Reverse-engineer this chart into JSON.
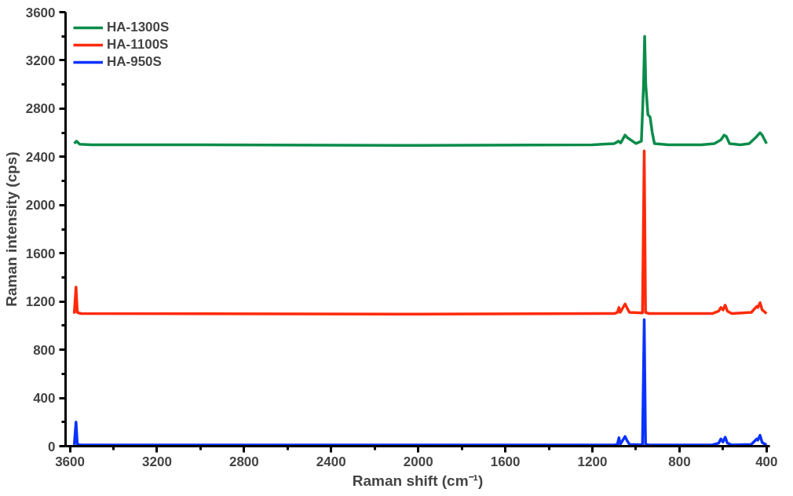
{
  "chart_data": {
    "type": "line",
    "xlabel": "Raman shift (cm⁻¹)",
    "ylabel": "Raman intensity (cps)",
    "xlim": [
      3620,
      385
    ],
    "ylim": [
      0,
      3600
    ],
    "xticks": [
      3600,
      3200,
      2800,
      2400,
      2000,
      1600,
      1200,
      800,
      400
    ],
    "yticks": [
      0,
      400,
      800,
      1200,
      1600,
      2000,
      2400,
      2800,
      3200,
      3600
    ],
    "grid": false,
    "legend": "top left",
    "line_style": "solid",
    "marker": "none",
    "series": [
      {
        "name": "HA-1300S",
        "color": "#0a8c4a",
        "x": [
          3580,
          3570,
          3555,
          3500,
          3000,
          2000,
          1200,
          1100,
          1080,
          1070,
          1050,
          1040,
          1000,
          975,
          965,
          960,
          955,
          945,
          935,
          925,
          915,
          850,
          700,
          640,
          610,
          595,
          585,
          570,
          520,
          480,
          450,
          430,
          420,
          400
        ],
        "values": [
          2510,
          2530,
          2505,
          2500,
          2500,
          2495,
          2500,
          2510,
          2530,
          2515,
          2580,
          2560,
          2510,
          2530,
          3000,
          3400,
          3000,
          2750,
          2730,
          2600,
          2510,
          2500,
          2500,
          2510,
          2540,
          2580,
          2570,
          2510,
          2500,
          2510,
          2560,
          2600,
          2580,
          2510
        ]
      },
      {
        "name": "HA-1100S",
        "color": "#ff2a0a",
        "x": [
          3580,
          3572,
          3566,
          3550,
          2000,
          1100,
          1085,
          1078,
          1072,
          1050,
          1042,
          1030,
          970,
          962,
          956,
          940,
          650,
          620,
          610,
          600,
          590,
          580,
          560,
          470,
          445,
          440,
          430,
          420,
          400
        ],
        "values": [
          1100,
          1320,
          1110,
          1100,
          1095,
          1100,
          1110,
          1150,
          1110,
          1180,
          1150,
          1110,
          1105,
          2450,
          1110,
          1100,
          1100,
          1120,
          1150,
          1130,
          1170,
          1120,
          1100,
          1110,
          1160,
          1150,
          1190,
          1130,
          1100
        ]
      },
      {
        "name": "HA-950S",
        "color": "#0a32ff",
        "x": [
          3580,
          3572,
          3566,
          3550,
          2000,
          1100,
          1085,
          1078,
          1072,
          1050,
          1042,
          1030,
          970,
          962,
          956,
          940,
          650,
          620,
          610,
          600,
          590,
          580,
          560,
          470,
          445,
          440,
          430,
          420,
          400
        ],
        "values": [
          10,
          200,
          15,
          10,
          10,
          10,
          15,
          70,
          15,
          80,
          50,
          15,
          12,
          1050,
          15,
          10,
          10,
          25,
          60,
          35,
          75,
          25,
          10,
          15,
          60,
          50,
          90,
          30,
          10
        ]
      }
    ]
  }
}
